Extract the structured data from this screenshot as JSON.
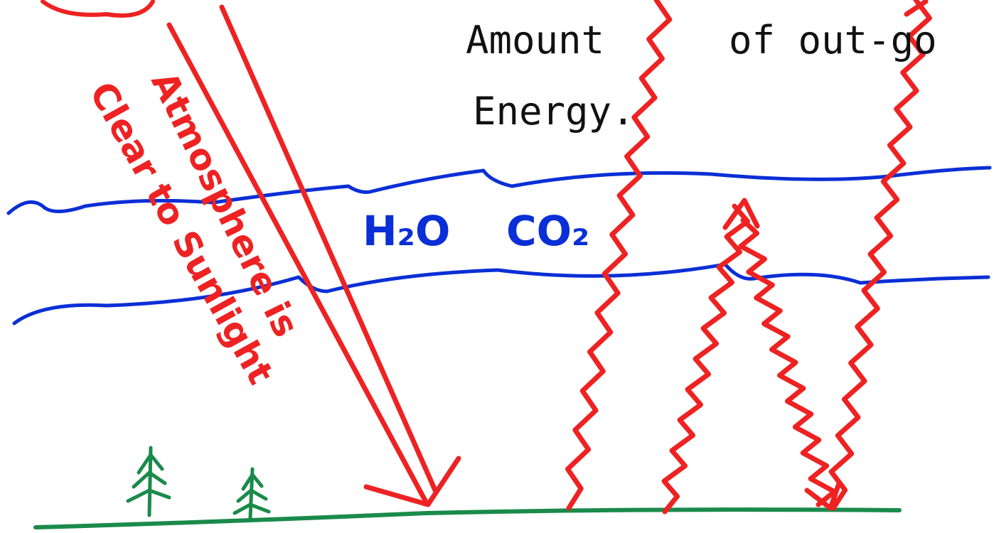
{
  "labels": {
    "amount": "Amount",
    "outgo": "of out-go",
    "energy": "Energy."
  },
  "gases": {
    "water": "H₂O",
    "carbon_dioxide": "CO₂"
  },
  "sunlight_note": {
    "line1": "Atmosphere is",
    "line2": "Clear to Sunlight"
  }
}
